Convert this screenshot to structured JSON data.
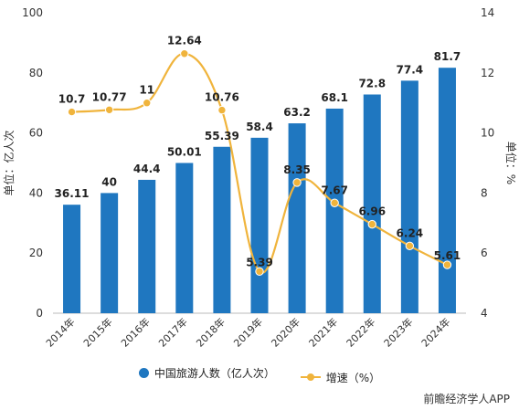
{
  "chart_data": {
    "type": "bar",
    "categories": [
      "2014年",
      "2015年",
      "2016年",
      "2017年",
      "2018年",
      "2019年",
      "2020年",
      "2021年",
      "2022年",
      "2023年",
      "2024年"
    ],
    "series": [
      {
        "name": "中国旅游人数（亿人次）",
        "type": "bar",
        "axis": "left",
        "values": [
          36.11,
          40,
          44.4,
          50.01,
          55.39,
          58.4,
          63.2,
          68.1,
          72.8,
          77.4,
          81.7
        ]
      },
      {
        "name": "增速（%）",
        "type": "line",
        "axis": "right",
        "values": [
          10.7,
          10.77,
          11,
          12.64,
          10.76,
          5.39,
          8.35,
          7.67,
          6.96,
          6.24,
          5.61
        ]
      }
    ],
    "ylabel_left": "单位：亿人次",
    "ylabel_right": "单位：%",
    "ylim_left": [
      0,
      100
    ],
    "yticks_left": [
      0,
      20,
      40,
      60,
      80,
      100
    ],
    "ylim_right": [
      4,
      14
    ],
    "yticks_right": [
      4,
      6,
      8,
      10,
      12,
      14
    ],
    "colors": {
      "bar": "#1f77c0",
      "line": "#f0b43c"
    },
    "legend_position": "bottom",
    "grid": false
  },
  "source": "前瞻经济学人APP"
}
